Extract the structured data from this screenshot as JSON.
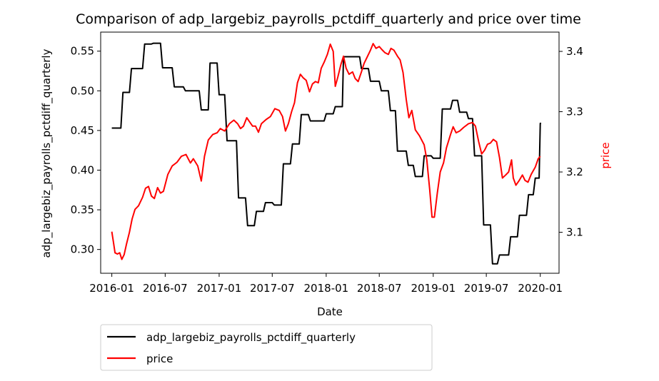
{
  "chart_data": {
    "type": "line",
    "title": "Comparison of adp_largebiz_payrolls_pctdiff_quarterly and price over time",
    "xlabel": "Date",
    "ylabel_left": "adp_largebiz_payrolls_pctdiff_quarterly",
    "ylabel_right": "price",
    "xlim": [
      "2015-11-24",
      "2020-03-05"
    ],
    "ylim_left": [
      0.27,
      0.574
    ],
    "ylim_right": [
      3.032,
      3.432
    ],
    "x_ticks": [
      "2016-01",
      "2016-07",
      "2017-01",
      "2017-07",
      "2018-01",
      "2018-07",
      "2019-01",
      "2019-07",
      "2020-01"
    ],
    "y_left_ticks": [
      "0.30",
      "0.35",
      "0.40",
      "0.45",
      "0.50",
      "0.55"
    ],
    "y_right_ticks": [
      "3.1",
      "3.2",
      "3.3",
      "3.4"
    ],
    "legend_position": "below-left",
    "grid": false,
    "series": [
      {
        "name": "adp_largebiz_payrolls_pctdiff_quarterly",
        "axis": "left",
        "color": "#000000",
        "style": "step",
        "points": [
          [
            "2016-01-01",
            0.453
          ],
          [
            "2016-02-01",
            0.453
          ],
          [
            "2016-02-08",
            0.498
          ],
          [
            "2016-03-01",
            0.498
          ],
          [
            "2016-03-08",
            0.528
          ],
          [
            "2016-04-15",
            0.528
          ],
          [
            "2016-04-22",
            0.559
          ],
          [
            "2016-05-15",
            0.559
          ],
          [
            "2016-05-22",
            0.56
          ],
          [
            "2016-06-15",
            0.56
          ],
          [
            "2016-06-22",
            0.529
          ],
          [
            "2016-07-25",
            0.529
          ],
          [
            "2016-08-01",
            0.505
          ],
          [
            "2016-09-01",
            0.505
          ],
          [
            "2016-09-08",
            0.5
          ],
          [
            "2016-10-25",
            0.5
          ],
          [
            "2016-11-01",
            0.476
          ],
          [
            "2016-11-25",
            0.476
          ],
          [
            "2016-12-01",
            0.535
          ],
          [
            "2016-12-25",
            0.535
          ],
          [
            "2017-01-01",
            0.495
          ],
          [
            "2017-01-20",
            0.495
          ],
          [
            "2017-01-28",
            0.437
          ],
          [
            "2017-03-01",
            0.437
          ],
          [
            "2017-03-08",
            0.365
          ],
          [
            "2017-04-01",
            0.365
          ],
          [
            "2017-04-08",
            0.33
          ],
          [
            "2017-05-01",
            0.33
          ],
          [
            "2017-05-08",
            0.348
          ],
          [
            "2017-06-01",
            0.348
          ],
          [
            "2017-06-08",
            0.359
          ],
          [
            "2017-07-01",
            0.359
          ],
          [
            "2017-07-08",
            0.356
          ],
          [
            "2017-08-01",
            0.356
          ],
          [
            "2017-08-08",
            0.408
          ],
          [
            "2017-09-01",
            0.408
          ],
          [
            "2017-09-08",
            0.433
          ],
          [
            "2017-10-01",
            0.433
          ],
          [
            "2017-10-08",
            0.47
          ],
          [
            "2017-11-01",
            0.47
          ],
          [
            "2017-11-08",
            0.462
          ],
          [
            "2017-12-25",
            0.462
          ],
          [
            "2018-01-01",
            0.471
          ],
          [
            "2018-01-25",
            0.471
          ],
          [
            "2018-02-01",
            0.48
          ],
          [
            "2018-02-25",
            0.48
          ],
          [
            "2018-03-01",
            0.543
          ],
          [
            "2018-04-25",
            0.543
          ],
          [
            "2018-05-01",
            0.528
          ],
          [
            "2018-05-25",
            0.528
          ],
          [
            "2018-06-01",
            0.512
          ],
          [
            "2018-07-01",
            0.512
          ],
          [
            "2018-07-08",
            0.5
          ],
          [
            "2018-08-01",
            0.5
          ],
          [
            "2018-08-08",
            0.475
          ],
          [
            "2018-08-25",
            0.475
          ],
          [
            "2018-09-01",
            0.424
          ],
          [
            "2018-10-01",
            0.424
          ],
          [
            "2018-10-08",
            0.406
          ],
          [
            "2018-10-25",
            0.406
          ],
          [
            "2018-11-01",
            0.392
          ],
          [
            "2018-11-25",
            0.392
          ],
          [
            "2018-12-01",
            0.418
          ],
          [
            "2018-12-25",
            0.418
          ],
          [
            "2019-01-01",
            0.415
          ],
          [
            "2019-01-25",
            0.415
          ],
          [
            "2019-02-01",
            0.477
          ],
          [
            "2019-03-01",
            0.477
          ],
          [
            "2019-03-08",
            0.488
          ],
          [
            "2019-03-25",
            0.488
          ],
          [
            "2019-04-01",
            0.473
          ],
          [
            "2019-04-25",
            0.473
          ],
          [
            "2019-05-01",
            0.465
          ],
          [
            "2019-05-15",
            0.465
          ],
          [
            "2019-05-22",
            0.418
          ],
          [
            "2019-06-15",
            0.418
          ],
          [
            "2019-06-22",
            0.331
          ],
          [
            "2019-07-15",
            0.331
          ],
          [
            "2019-07-22",
            0.282
          ],
          [
            "2019-08-08",
            0.282
          ],
          [
            "2019-08-15",
            0.293
          ],
          [
            "2019-09-15",
            0.293
          ],
          [
            "2019-09-22",
            0.316
          ],
          [
            "2019-10-15",
            0.316
          ],
          [
            "2019-10-22",
            0.343
          ],
          [
            "2019-11-15",
            0.343
          ],
          [
            "2019-11-22",
            0.369
          ],
          [
            "2019-12-08",
            0.369
          ],
          [
            "2019-12-15",
            0.39
          ],
          [
            "2019-12-28",
            0.39
          ],
          [
            "2020-01-01",
            0.459
          ],
          [
            "2020-01-04",
            0.459
          ]
        ]
      },
      {
        "name": "price",
        "axis": "right",
        "color": "#ff0000",
        "style": "line",
        "points": [
          [
            "2016-01-01",
            3.101
          ],
          [
            "2016-01-06",
            3.085
          ],
          [
            "2016-01-12",
            3.066
          ],
          [
            "2016-01-20",
            3.064
          ],
          [
            "2016-01-28",
            3.066
          ],
          [
            "2016-02-04",
            3.055
          ],
          [
            "2016-02-12",
            3.063
          ],
          [
            "2016-02-20",
            3.08
          ],
          [
            "2016-03-01",
            3.1
          ],
          [
            "2016-03-10",
            3.122
          ],
          [
            "2016-03-20",
            3.138
          ],
          [
            "2016-04-01",
            3.144
          ],
          [
            "2016-04-15",
            3.158
          ],
          [
            "2016-04-25",
            3.173
          ],
          [
            "2016-05-05",
            3.176
          ],
          [
            "2016-05-15",
            3.16
          ],
          [
            "2016-05-25",
            3.156
          ],
          [
            "2016-06-05",
            3.174
          ],
          [
            "2016-06-15",
            3.165
          ],
          [
            "2016-06-25",
            3.168
          ],
          [
            "2016-07-10",
            3.196
          ],
          [
            "2016-07-25",
            3.21
          ],
          [
            "2016-08-10",
            3.216
          ],
          [
            "2016-08-25",
            3.226
          ],
          [
            "2016-09-10",
            3.229
          ],
          [
            "2016-09-25",
            3.215
          ],
          [
            "2016-10-05",
            3.222
          ],
          [
            "2016-10-20",
            3.21
          ],
          [
            "2016-11-01",
            3.185
          ],
          [
            "2016-11-12",
            3.226
          ],
          [
            "2016-11-25",
            3.253
          ],
          [
            "2016-12-10",
            3.262
          ],
          [
            "2016-12-25",
            3.265
          ],
          [
            "2017-01-05",
            3.272
          ],
          [
            "2017-01-20",
            3.268
          ],
          [
            "2017-02-05",
            3.28
          ],
          [
            "2017-02-20",
            3.286
          ],
          [
            "2017-03-05",
            3.28
          ],
          [
            "2017-03-15",
            3.272
          ],
          [
            "2017-03-25",
            3.276
          ],
          [
            "2017-04-05",
            3.29
          ],
          [
            "2017-04-15",
            3.283
          ],
          [
            "2017-04-25",
            3.276
          ],
          [
            "2017-05-05",
            3.276
          ],
          [
            "2017-05-15",
            3.266
          ],
          [
            "2017-05-25",
            3.28
          ],
          [
            "2017-06-10",
            3.287
          ],
          [
            "2017-06-25",
            3.292
          ],
          [
            "2017-07-10",
            3.305
          ],
          [
            "2017-07-25",
            3.302
          ],
          [
            "2017-08-05",
            3.292
          ],
          [
            "2017-08-15",
            3.268
          ],
          [
            "2017-08-25",
            3.28
          ],
          [
            "2017-09-05",
            3.3
          ],
          [
            "2017-09-15",
            3.315
          ],
          [
            "2017-09-25",
            3.348
          ],
          [
            "2017-10-05",
            3.362
          ],
          [
            "2017-10-15",
            3.356
          ],
          [
            "2017-10-25",
            3.352
          ],
          [
            "2017-11-05",
            3.333
          ],
          [
            "2017-11-15",
            3.346
          ],
          [
            "2017-11-25",
            3.35
          ],
          [
            "2017-12-05",
            3.348
          ],
          [
            "2017-12-15",
            3.372
          ],
          [
            "2017-12-25",
            3.382
          ],
          [
            "2018-01-05",
            3.395
          ],
          [
            "2018-01-15",
            3.412
          ],
          [
            "2018-01-25",
            3.4
          ],
          [
            "2018-02-01",
            3.342
          ],
          [
            "2018-02-10",
            3.358
          ],
          [
            "2018-02-20",
            3.378
          ],
          [
            "2018-03-01",
            3.392
          ],
          [
            "2018-03-10",
            3.372
          ],
          [
            "2018-03-20",
            3.362
          ],
          [
            "2018-04-01",
            3.366
          ],
          [
            "2018-04-10",
            3.355
          ],
          [
            "2018-04-20",
            3.35
          ],
          [
            "2018-05-01",
            3.366
          ],
          [
            "2018-05-10",
            3.38
          ],
          [
            "2018-05-20",
            3.39
          ],
          [
            "2018-06-01",
            3.402
          ],
          [
            "2018-06-10",
            3.413
          ],
          [
            "2018-06-20",
            3.405
          ],
          [
            "2018-07-01",
            3.408
          ],
          [
            "2018-07-10",
            3.403
          ],
          [
            "2018-07-20",
            3.398
          ],
          [
            "2018-08-01",
            3.395
          ],
          [
            "2018-08-10",
            3.405
          ],
          [
            "2018-08-20",
            3.402
          ],
          [
            "2018-09-01",
            3.392
          ],
          [
            "2018-09-10",
            3.386
          ],
          [
            "2018-09-20",
            3.365
          ],
          [
            "2018-10-01",
            3.32
          ],
          [
            "2018-10-10",
            3.29
          ],
          [
            "2018-10-20",
            3.302
          ],
          [
            "2018-11-01",
            3.27
          ],
          [
            "2018-11-15",
            3.26
          ],
          [
            "2018-12-01",
            3.245
          ],
          [
            "2018-12-10",
            3.22
          ],
          [
            "2018-12-20",
            3.17
          ],
          [
            "2018-12-28",
            3.125
          ],
          [
            "2019-01-05",
            3.125
          ],
          [
            "2019-01-15",
            3.165
          ],
          [
            "2019-01-25",
            3.2
          ],
          [
            "2019-02-05",
            3.215
          ],
          [
            "2019-02-15",
            3.24
          ],
          [
            "2019-03-01",
            3.262
          ],
          [
            "2019-03-10",
            3.275
          ],
          [
            "2019-03-20",
            3.265
          ],
          [
            "2019-04-01",
            3.268
          ],
          [
            "2019-04-15",
            3.274
          ],
          [
            "2019-05-01",
            3.28
          ],
          [
            "2019-05-15",
            3.282
          ],
          [
            "2019-05-25",
            3.276
          ],
          [
            "2019-06-05",
            3.25
          ],
          [
            "2019-06-15",
            3.23
          ],
          [
            "2019-06-25",
            3.236
          ],
          [
            "2019-07-05",
            3.246
          ],
          [
            "2019-07-15",
            3.248
          ],
          [
            "2019-07-25",
            3.254
          ],
          [
            "2019-08-05",
            3.25
          ],
          [
            "2019-08-15",
            3.224
          ],
          [
            "2019-08-25",
            3.19
          ],
          [
            "2019-09-05",
            3.195
          ],
          [
            "2019-09-15",
            3.2
          ],
          [
            "2019-09-25",
            3.22
          ],
          [
            "2019-10-01",
            3.19
          ],
          [
            "2019-10-10",
            3.178
          ],
          [
            "2019-10-20",
            3.185
          ],
          [
            "2019-11-01",
            3.195
          ],
          [
            "2019-11-10",
            3.186
          ],
          [
            "2019-11-20",
            3.183
          ],
          [
            "2019-12-01",
            3.196
          ],
          [
            "2019-12-15",
            3.208
          ],
          [
            "2019-12-25",
            3.222
          ],
          [
            "2020-01-01",
            3.226
          ]
        ]
      }
    ]
  }
}
